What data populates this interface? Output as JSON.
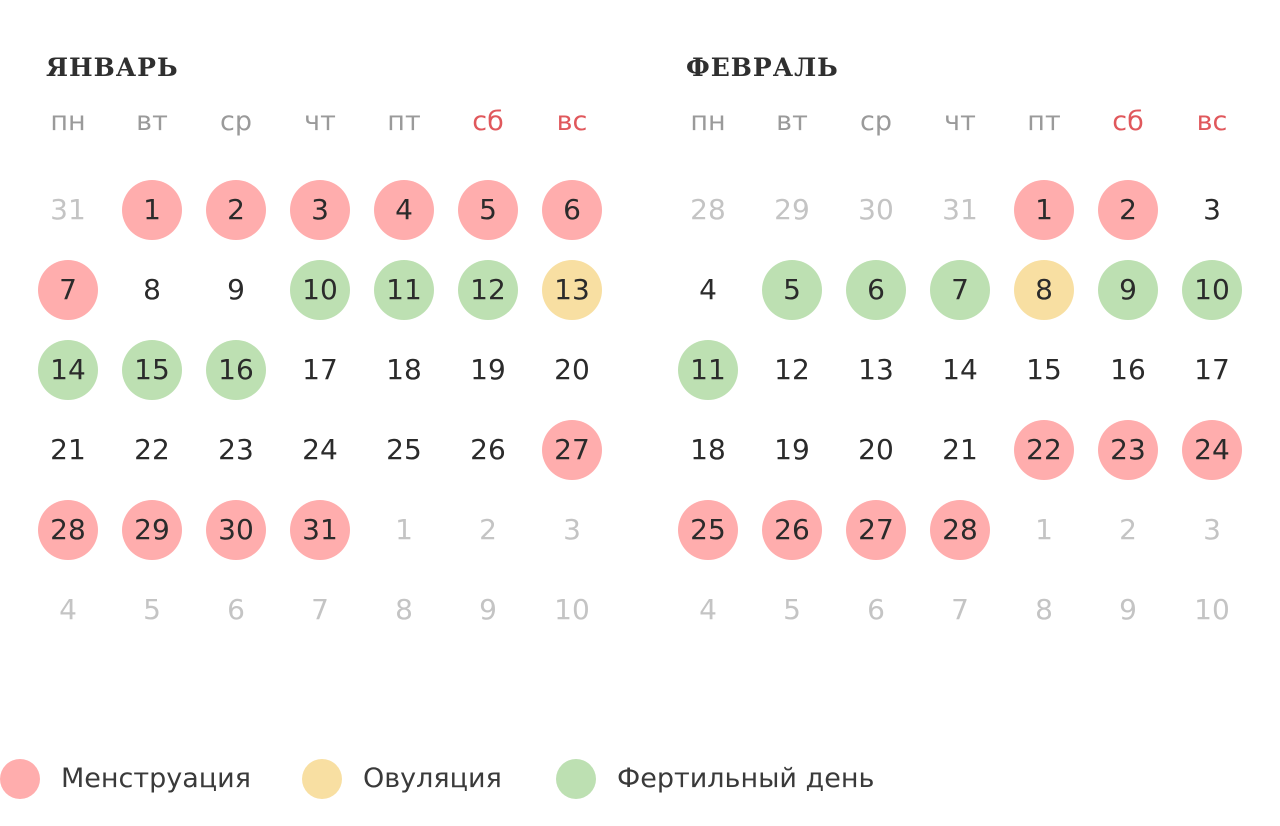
{
  "colors": {
    "menstruation": "#ffadad",
    "ovulation": "#f8dfa2",
    "fertile": "#bde0b2",
    "weekend_text": "#e0585c",
    "outside_text": "#c4c4c4"
  },
  "weekdays": [
    "пн",
    "вт",
    "ср",
    "чт",
    "пт",
    "сб",
    "вс"
  ],
  "months": [
    {
      "title": "ЯНВАРЬ",
      "days": [
        {
          "n": "31",
          "state": "out"
        },
        {
          "n": "1",
          "state": "mens"
        },
        {
          "n": "2",
          "state": "mens"
        },
        {
          "n": "3",
          "state": "mens"
        },
        {
          "n": "4",
          "state": "mens"
        },
        {
          "n": "5",
          "state": "mens"
        },
        {
          "n": "6",
          "state": "mens"
        },
        {
          "n": "7",
          "state": "mens"
        },
        {
          "n": "8",
          "state": ""
        },
        {
          "n": "9",
          "state": ""
        },
        {
          "n": "10",
          "state": "fert"
        },
        {
          "n": "11",
          "state": "fert"
        },
        {
          "n": "12",
          "state": "fert"
        },
        {
          "n": "13",
          "state": "ovul"
        },
        {
          "n": "14",
          "state": "fert"
        },
        {
          "n": "15",
          "state": "fert"
        },
        {
          "n": "16",
          "state": "fert"
        },
        {
          "n": "17",
          "state": ""
        },
        {
          "n": "18",
          "state": ""
        },
        {
          "n": "19",
          "state": ""
        },
        {
          "n": "20",
          "state": ""
        },
        {
          "n": "21",
          "state": ""
        },
        {
          "n": "22",
          "state": ""
        },
        {
          "n": "23",
          "state": ""
        },
        {
          "n": "24",
          "state": ""
        },
        {
          "n": "25",
          "state": ""
        },
        {
          "n": "26",
          "state": ""
        },
        {
          "n": "27",
          "state": "mens"
        },
        {
          "n": "28",
          "state": "mens"
        },
        {
          "n": "29",
          "state": "mens"
        },
        {
          "n": "30",
          "state": "mens"
        },
        {
          "n": "31",
          "state": "mens"
        },
        {
          "n": "1",
          "state": "out"
        },
        {
          "n": "2",
          "state": "out"
        },
        {
          "n": "3",
          "state": "out"
        },
        {
          "n": "4",
          "state": "out"
        },
        {
          "n": "5",
          "state": "out"
        },
        {
          "n": "6",
          "state": "out"
        },
        {
          "n": "7",
          "state": "out"
        },
        {
          "n": "8",
          "state": "out"
        },
        {
          "n": "9",
          "state": "out"
        },
        {
          "n": "10",
          "state": "out"
        }
      ]
    },
    {
      "title": "ФЕВРАЛЬ",
      "days": [
        {
          "n": "28",
          "state": "out"
        },
        {
          "n": "29",
          "state": "out"
        },
        {
          "n": "30",
          "state": "out"
        },
        {
          "n": "31",
          "state": "out"
        },
        {
          "n": "1",
          "state": "mens"
        },
        {
          "n": "2",
          "state": "mens"
        },
        {
          "n": "3",
          "state": ""
        },
        {
          "n": "4",
          "state": ""
        },
        {
          "n": "5",
          "state": "fert"
        },
        {
          "n": "6",
          "state": "fert"
        },
        {
          "n": "7",
          "state": "fert"
        },
        {
          "n": "8",
          "state": "ovul"
        },
        {
          "n": "9",
          "state": "fert"
        },
        {
          "n": "10",
          "state": "fert"
        },
        {
          "n": "11",
          "state": "fert"
        },
        {
          "n": "12",
          "state": ""
        },
        {
          "n": "13",
          "state": ""
        },
        {
          "n": "14",
          "state": ""
        },
        {
          "n": "15",
          "state": ""
        },
        {
          "n": "16",
          "state": ""
        },
        {
          "n": "17",
          "state": ""
        },
        {
          "n": "18",
          "state": ""
        },
        {
          "n": "19",
          "state": ""
        },
        {
          "n": "20",
          "state": ""
        },
        {
          "n": "21",
          "state": ""
        },
        {
          "n": "22",
          "state": "mens"
        },
        {
          "n": "23",
          "state": "mens"
        },
        {
          "n": "24",
          "state": "mens"
        },
        {
          "n": "25",
          "state": "mens"
        },
        {
          "n": "26",
          "state": "mens"
        },
        {
          "n": "27",
          "state": "mens"
        },
        {
          "n": "28",
          "state": "mens"
        },
        {
          "n": "1",
          "state": "out"
        },
        {
          "n": "2",
          "state": "out"
        },
        {
          "n": "3",
          "state": "out"
        },
        {
          "n": "4",
          "state": "out"
        },
        {
          "n": "5",
          "state": "out"
        },
        {
          "n": "6",
          "state": "out"
        },
        {
          "n": "7",
          "state": "out"
        },
        {
          "n": "8",
          "state": "out"
        },
        {
          "n": "9",
          "state": "out"
        },
        {
          "n": "10",
          "state": "out"
        }
      ]
    }
  ],
  "legend": {
    "menstruation": "Менструация",
    "ovulation": "Овуляция",
    "fertile": "Фертильный день"
  }
}
